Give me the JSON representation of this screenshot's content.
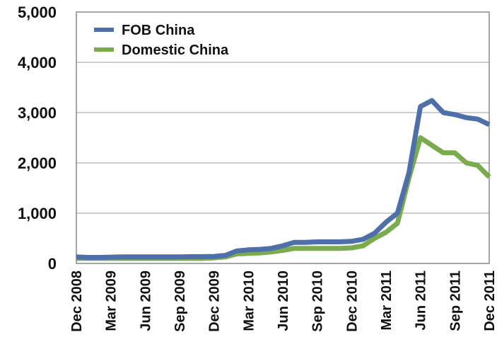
{
  "chart_data": {
    "type": "line",
    "title": "",
    "xlabel": "",
    "ylabel": "",
    "ylim": [
      0,
      5000
    ],
    "yticks": [
      0,
      1000,
      2000,
      3000,
      4000,
      5000
    ],
    "ytick_labels": [
      "0",
      "1,000",
      "2,000",
      "3,000",
      "4,000",
      "5,000"
    ],
    "grid": true,
    "legend_position": "top-left",
    "x": [
      "Dec 2008",
      "Jan 2009",
      "Feb 2009",
      "Mar 2009",
      "Apr 2009",
      "May 2009",
      "Jun 2009",
      "Jul 2009",
      "Aug 2009",
      "Sep 2009",
      "Oct 2009",
      "Nov 2009",
      "Dec 2009",
      "Jan 2010",
      "Feb 2010",
      "Mar 2010",
      "Apr 2010",
      "May 2010",
      "Jun 2010",
      "Jul 2010",
      "Aug 2010",
      "Sep 2010",
      "Oct 2010",
      "Nov 2010",
      "Dec 2010",
      "Jan 2011",
      "Feb 2011",
      "Mar 2011",
      "Apr 2011",
      "May 2011",
      "Jun 2011",
      "Jul 2011",
      "Aug 2011",
      "Sep 2011",
      "Oct 2011",
      "Nov 2011",
      "Dec 2011"
    ],
    "xtick_labels": [
      "Dec 2008",
      "Mar 2009",
      "Jun 2009",
      "Sep 2009",
      "Dec 2009",
      "Mar 2010",
      "Jun 2010",
      "Sep 2010",
      "Dec 2010",
      "Mar 2011",
      "Jun 2011",
      "Sep 2011",
      "Dec 2011"
    ],
    "series": [
      {
        "name": "FOB China",
        "color": "#4f6fab",
        "values": [
          130,
          120,
          120,
          125,
          130,
          130,
          130,
          130,
          130,
          130,
          135,
          135,
          140,
          160,
          250,
          270,
          280,
          300,
          350,
          420,
          420,
          430,
          430,
          430,
          440,
          480,
          600,
          820,
          1000,
          1800,
          3120,
          3240,
          3000,
          2960,
          2900,
          2870,
          2760
        ]
      },
      {
        "name": "Domestic China",
        "color": "#7aab4d",
        "values": [
          100,
          100,
          100,
          100,
          100,
          100,
          100,
          100,
          100,
          100,
          100,
          100,
          110,
          130,
          190,
          200,
          210,
          230,
          260,
          300,
          300,
          300,
          300,
          300,
          310,
          350,
          500,
          620,
          800,
          1700,
          2500,
          2350,
          2200,
          2200,
          2000,
          1950,
          1720
        ]
      }
    ]
  }
}
